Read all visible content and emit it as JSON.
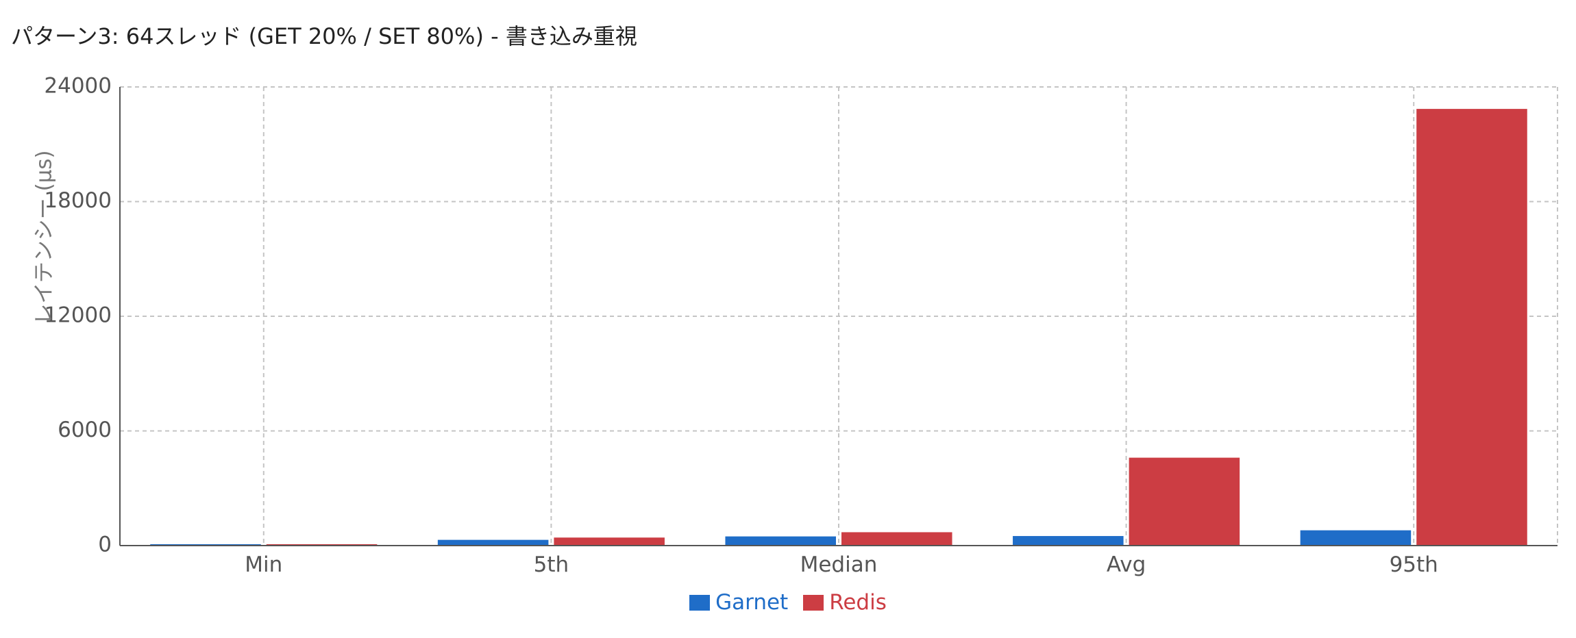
{
  "chart_data": {
    "type": "bar",
    "title": "パターン3: 64スレッド (GET 20% / SET 80%) - 書き込み重視",
    "xlabel": "",
    "ylabel": "レイテンシー (μs)",
    "categories": [
      "Min",
      "5th",
      "Median",
      "Avg",
      "95th"
    ],
    "series": [
      {
        "name": "Garnet",
        "color": "#1f6dc8",
        "values": [
          25,
          300,
          480,
          500,
          800
        ]
      },
      {
        "name": "Redis",
        "color": "#cc3d43",
        "values": [
          30,
          420,
          700,
          4600,
          22850
        ]
      }
    ],
    "ylim": [
      0,
      24000
    ],
    "yticks": [
      "0",
      "6000",
      "12000",
      "18000",
      "24000"
    ],
    "grid": true,
    "legend_position": "bottom"
  }
}
